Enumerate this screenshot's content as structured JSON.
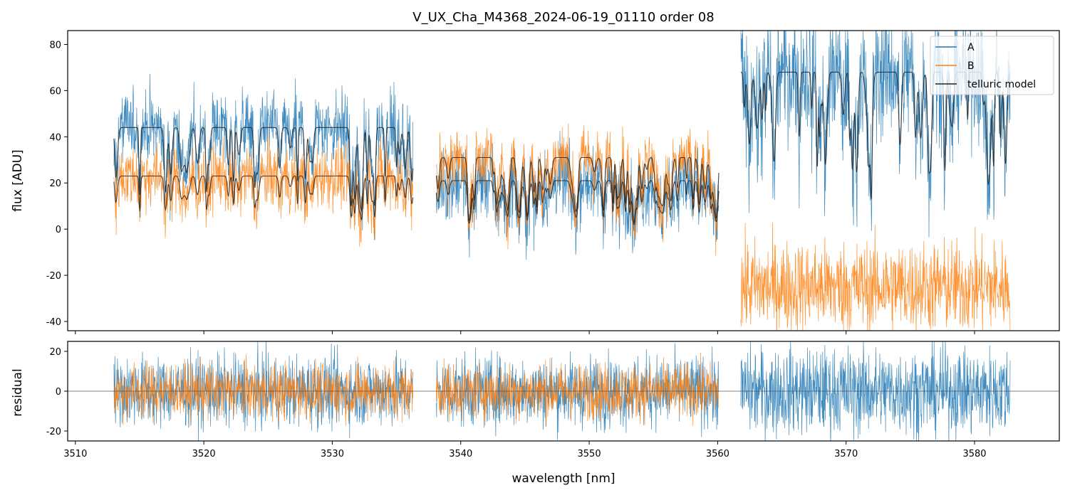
{
  "chart_data": {
    "type": "line",
    "title": "V_UX_Cha_M4368_2024-06-19_01110  order 08",
    "xlabel": "wavelength [nm]",
    "xlim": [
      3509.4,
      3586.6
    ],
    "xticks": [
      3510,
      3520,
      3530,
      3540,
      3550,
      3560,
      3570,
      3580
    ],
    "colors": {
      "A": "#1f77b4",
      "B": "#ff7f0e",
      "model": "#222222"
    },
    "segments": [
      {
        "x0": 3513.0,
        "x1": 3536.3
      },
      {
        "x0": 3538.1,
        "x1": 3560.1
      },
      {
        "x0": 3561.8,
        "x1": 3582.8
      }
    ],
    "panels": [
      {
        "name": "flux",
        "ylabel": "flux [ADU]",
        "ylim": [
          -44,
          86
        ],
        "yticks": [
          -40,
          -20,
          0,
          20,
          40,
          60,
          80
        ],
        "legend": {
          "loc": "top-right",
          "entries": [
            "A",
            "B",
            "telluric model"
          ]
        },
        "series": [
          {
            "name": "A",
            "role": "data",
            "levels": [
              44,
              21,
              68
            ],
            "noise": [
              8,
              8,
              14
            ],
            "model_segments": [
              0,
              1,
              2
            ]
          },
          {
            "name": "B",
            "role": "data",
            "levels": [
              23,
              31,
              -25
            ],
            "noise": [
              7,
              7,
              10
            ],
            "model_segments": [
              0,
              1
            ]
          },
          {
            "name": "telluric model",
            "role": "model",
            "levels_A": [
              44,
              21,
              68
            ],
            "levels_B": [
              23,
              31
            ]
          }
        ]
      },
      {
        "name": "residual",
        "ylabel": "residual",
        "ylim": [
          -25,
          25
        ],
        "yticks": [
          -20,
          0,
          20
        ],
        "zero_line": 0,
        "series": [
          {
            "name": "A",
            "noise": [
              9,
              9,
              11
            ],
            "segments": [
              0,
              1,
              2
            ]
          },
          {
            "name": "B",
            "noise": [
              7,
              7
            ],
            "segments": [
              0,
              1
            ]
          }
        ]
      }
    ]
  }
}
